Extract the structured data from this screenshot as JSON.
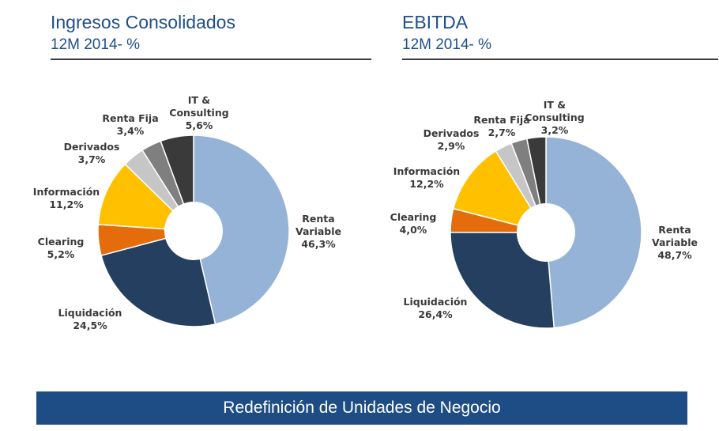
{
  "left_panel": {
    "title": "Ingresos Consolidados",
    "subtitle": "12M 2014- %"
  },
  "right_panel": {
    "title": "EBITDA",
    "subtitle": "12M 2014- %"
  },
  "banner": {
    "text": "Redefinición de Unidades de Negocio"
  },
  "chart_data": [
    {
      "type": "pie",
      "title": "Ingresos Consolidados",
      "subtitle": "12M 2014- %",
      "unit": "%",
      "categories": [
        "Renta Variable",
        "Liquidación",
        "Clearing",
        "Información",
        "Derivados",
        "Renta Fija",
        "IT & Consulting"
      ],
      "values": [
        46.3,
        24.5,
        5.2,
        11.2,
        3.7,
        3.4,
        5.6
      ],
      "labels": [
        [
          "Renta",
          "Variable",
          "46,3%"
        ],
        [
          "Liquidación",
          "24,5%"
        ],
        [
          "Clearing",
          "5,2%"
        ],
        [
          "Información",
          "11,2%"
        ],
        [
          "Derivados",
          "3,7%"
        ],
        [
          "Renta Fija",
          "3,4%"
        ],
        [
          "IT &",
          "Consulting",
          "5,6%"
        ]
      ],
      "colors": [
        "#95b3d7",
        "#243f60",
        "#e46c0a",
        "#ffc000",
        "#c6c6c6",
        "#7f7f7f",
        "#3a3a3a"
      ]
    },
    {
      "type": "pie",
      "title": "EBITDA",
      "subtitle": "12M 2014- %",
      "unit": "%",
      "categories": [
        "Renta Variable",
        "Liquidación",
        "Clearing",
        "Información",
        "Derivados",
        "Renta Fija",
        "IT & Consulting"
      ],
      "values": [
        48.7,
        26.4,
        4.0,
        12.2,
        2.9,
        2.7,
        3.2
      ],
      "labels": [
        [
          "Renta",
          "Variable",
          "48,7%"
        ],
        [
          "Liquidación",
          "26,4%"
        ],
        [
          "Clearing",
          "4,0%"
        ],
        [
          "Información",
          "12,2%"
        ],
        [
          "Derivados",
          "2,9%"
        ],
        [
          "Renta Fija",
          "2,7%"
        ],
        [
          "IT &",
          "Consulting",
          "3,2%"
        ]
      ],
      "colors": [
        "#95b3d7",
        "#243f60",
        "#e46c0a",
        "#ffc000",
        "#c6c6c6",
        "#7f7f7f",
        "#3a3a3a"
      ]
    }
  ]
}
